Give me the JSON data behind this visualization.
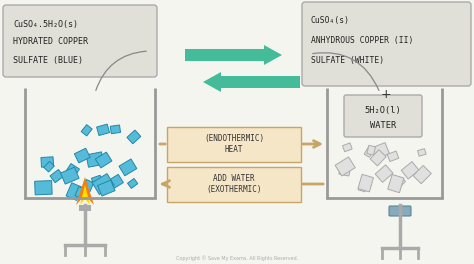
{
  "bg_color": "#f5f5f0",
  "left_label_lines": [
    "CuSO₄.5H₂O(s)",
    "HYDRATED COPPER",
    "SULFATE (BLUE)"
  ],
  "right_label_top": [
    "CuSO₄(s)",
    "ANHYDROUS COPPER (II)",
    "SULFATE (WHITE)"
  ],
  "water_label": [
    "5H₂O(l)",
    "WATER"
  ],
  "endothermic_label": "(ENDOTHERMIC)\nHEAT",
  "exothermic_label": "ADD WATER\n(EXOTHERMIC)",
  "arrow_box_fill": "#f5e6c8",
  "arrow_box_edge": "#c8a465",
  "label_box_fill": "#e0e0d8",
  "label_box_edge": "#aaaaaa",
  "beaker_color": "#999999",
  "blue_crystal": "#55bbd8",
  "blue_crystal_edge": "#2288aa",
  "white_crystal": "#e0e0e0",
  "white_crystal_edge": "#aaaaaa",
  "flame_orange": "#f08010",
  "flame_yellow": "#ffdd00",
  "stand_color": "#aaaaaa",
  "green_color": "#44bb99",
  "copyright": "Copyright © Save My Exams. All Rights Reserved."
}
